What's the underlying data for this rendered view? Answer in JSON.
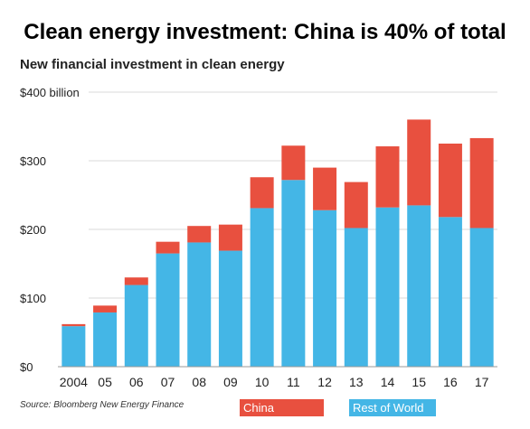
{
  "title": "Clean energy investment: China is 40% of total",
  "subtitle": "New financial investment in clean energy",
  "source": "Source: Bloomberg New Energy Finance",
  "colors": {
    "china": "#e8503f",
    "rest_of_world": "#44b6e6",
    "grid": "#d9d9d9"
  },
  "chart_data": {
    "type": "bar",
    "stacked": true,
    "categories": [
      "2004",
      "05",
      "06",
      "07",
      "08",
      "09",
      "10",
      "11",
      "12",
      "13",
      "14",
      "15",
      "16",
      "17"
    ],
    "series": [
      {
        "name": "Rest of World",
        "values": [
          59,
          79,
          119,
          165,
          181,
          169,
          231,
          272,
          228,
          202,
          232,
          235,
          218,
          202
        ]
      },
      {
        "name": "China",
        "values": [
          3,
          10,
          11,
          17,
          24,
          38,
          45,
          50,
          62,
          67,
          89,
          125,
          107,
          131
        ]
      }
    ],
    "y_ticks": [
      "$0",
      "$100",
      "$200",
      "$300",
      "$400 billion"
    ],
    "ylim": [
      0,
      400
    ],
    "grid": true,
    "legend": [
      "China",
      "Rest of World"
    ],
    "legend_position": "bottom"
  }
}
